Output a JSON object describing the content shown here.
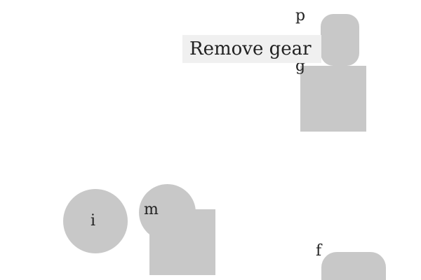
{
  "tooltip": {
    "text": "Remove gear"
  },
  "items": {
    "p": {
      "letter": "p"
    },
    "g": {
      "letter": "g"
    },
    "i": {
      "letter": "i"
    },
    "m": {
      "letter": "m"
    },
    "f": {
      "letter": "f"
    }
  },
  "colors": {
    "shape_fill": "#c8c8c8",
    "tooltip_background": "#f0f0f0",
    "text": "#222222",
    "background": "#ffffff"
  }
}
